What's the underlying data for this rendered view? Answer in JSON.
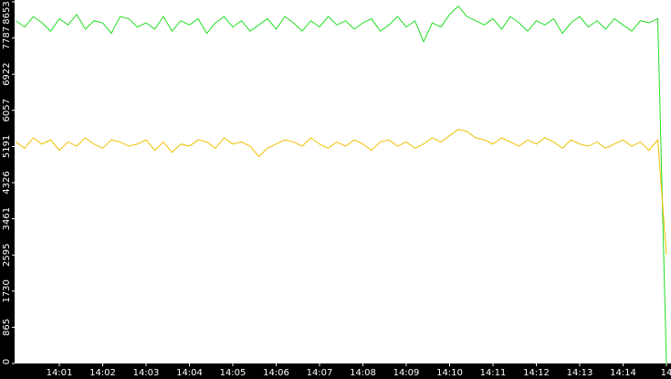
{
  "chart_data": {
    "type": "line",
    "categories": [
      null,
      null,
      null,
      null,
      null,
      "14:01",
      null,
      null,
      null,
      null,
      "14:02",
      null,
      null,
      null,
      null,
      "14:03",
      null,
      null,
      null,
      null,
      "14:04",
      null,
      null,
      null,
      null,
      "14:05",
      null,
      null,
      null,
      null,
      "14:06",
      null,
      null,
      null,
      null,
      "14:07",
      null,
      null,
      null,
      null,
      "14:08",
      null,
      null,
      null,
      null,
      "14:09",
      null,
      null,
      null,
      null,
      "14:10",
      null,
      null,
      null,
      null,
      "14:11",
      null,
      null,
      null,
      null,
      "14:12",
      null,
      null,
      null,
      null,
      "14:13",
      null,
      null,
      null,
      null,
      "14:14",
      null,
      null,
      null,
      null,
      "14"
    ],
    "series": [
      {
        "color": "#22dd22",
        "values": [
          8200,
          8050,
          8300,
          8150,
          7950,
          8250,
          8100,
          8350,
          8000,
          8200,
          8150,
          7900,
          8300,
          8250,
          8050,
          8150,
          8000,
          8300,
          7950,
          8200,
          8100,
          8250,
          7900,
          8150,
          8300,
          8050,
          8200,
          7950,
          8100,
          8250,
          8000,
          8300,
          8150,
          7950,
          8200,
          8050,
          8300,
          8100,
          8200,
          8000,
          8150,
          8250,
          7950,
          8100,
          8300,
          8050,
          8200,
          7700,
          8150,
          8050,
          8350,
          8550,
          8300,
          8200,
          8100,
          8250,
          8000,
          8300,
          8150,
          7950,
          8200,
          8100,
          8250,
          7900,
          8150,
          8300,
          8050,
          8200,
          8000,
          8250,
          8100,
          7950,
          8200,
          8150,
          8250,
          0
        ]
      },
      {
        "color": "#f0c000",
        "values": [
          5300,
          5150,
          5400,
          5250,
          5350,
          5100,
          5300,
          5200,
          5400,
          5250,
          5150,
          5350,
          5300,
          5200,
          5250,
          5350,
          5100,
          5300,
          5050,
          5250,
          5200,
          5350,
          5300,
          5150,
          5400,
          5250,
          5300,
          5200,
          4950,
          5150,
          5250,
          5350,
          5300,
          5200,
          5400,
          5250,
          5150,
          5300,
          5200,
          5350,
          5250,
          5100,
          5300,
          5350,
          5200,
          5300,
          5150,
          5250,
          5400,
          5300,
          5450,
          5600,
          5550,
          5400,
          5350,
          5250,
          5400,
          5300,
          5200,
          5350,
          5250,
          5400,
          5300,
          5150,
          5350,
          5250,
          5200,
          5300,
          5150,
          5250,
          5350,
          5200,
          5300,
          5100,
          5350,
          2600
        ]
      }
    ],
    "ylim": [
      0,
      8653
    ],
    "yticks": [
      0,
      865,
      1730,
      2595,
      3461,
      4326,
      5191,
      6057,
      6922,
      7787,
      8653
    ]
  }
}
